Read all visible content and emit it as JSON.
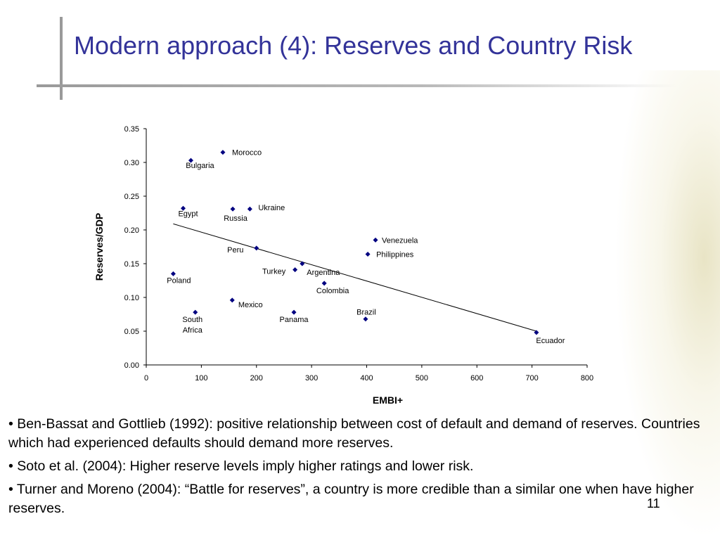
{
  "slide": {
    "title": "Modern approach (4):  Reserves and Country Risk",
    "bullets": [
      "• Ben-Bassat and Gottlieb (1992): positive relationship between cost of default and demand of reserves. Countries which had experienced defaults should demand more reserves.",
      "• Soto et al. (2004): Higher reserve levels imply higher ratings and lower risk.",
      "• Turner and Moreno (2004): “Battle for reserves”, a country is more credible than a similar one when have higher reserves."
    ],
    "page_number": "11",
    "colors": {
      "title": "#333399",
      "points": "#000080",
      "line": "#000000"
    }
  },
  "chart_data": {
    "type": "scatter",
    "xlabel": "EMBI+",
    "ylabel": "Reserves/GDP",
    "xlim": [
      0,
      800
    ],
    "ylim": [
      0,
      0.35
    ],
    "x_ticks": [
      "0",
      "100",
      "200",
      "300",
      "400",
      "500",
      "600",
      "700",
      "800"
    ],
    "y_ticks": [
      "0.00",
      "0.05",
      "0.10",
      "0.15",
      "0.20",
      "0.25",
      "0.30",
      "0.35"
    ],
    "grid": false,
    "points": [
      {
        "label": "Morocco",
        "x": 139,
        "y": 0.315
      },
      {
        "label": "Bulgaria",
        "x": 81,
        "y": 0.303
      },
      {
        "label": "Egypt",
        "x": 67,
        "y": 0.232
      },
      {
        "label": "Russia",
        "x": 157,
        "y": 0.231
      },
      {
        "label": "Ukraine",
        "x": 188,
        "y": 0.231
      },
      {
        "label": "Venezuela",
        "x": 416,
        "y": 0.185
      },
      {
        "label": "Peru",
        "x": 200,
        "y": 0.173
      },
      {
        "label": "Philippines",
        "x": 402,
        "y": 0.164
      },
      {
        "label": "Argentina",
        "x": 283,
        "y": 0.15
      },
      {
        "label": "Turkey",
        "x": 270,
        "y": 0.141
      },
      {
        "label": "Poland",
        "x": 49,
        "y": 0.135
      },
      {
        "label": "Colombia",
        "x": 323,
        "y": 0.121
      },
      {
        "label": "Mexico",
        "x": 156,
        "y": 0.096
      },
      {
        "label": "South Africa",
        "x": 89,
        "y": 0.078
      },
      {
        "label": "Panama",
        "x": 268,
        "y": 0.078
      },
      {
        "label": "Brazil",
        "x": 398,
        "y": 0.068
      },
      {
        "label": "Ecuador",
        "x": 708,
        "y": 0.048
      }
    ],
    "trendline": {
      "x": [
        49,
        708
      ],
      "y": [
        0.209,
        0.05
      ]
    }
  }
}
